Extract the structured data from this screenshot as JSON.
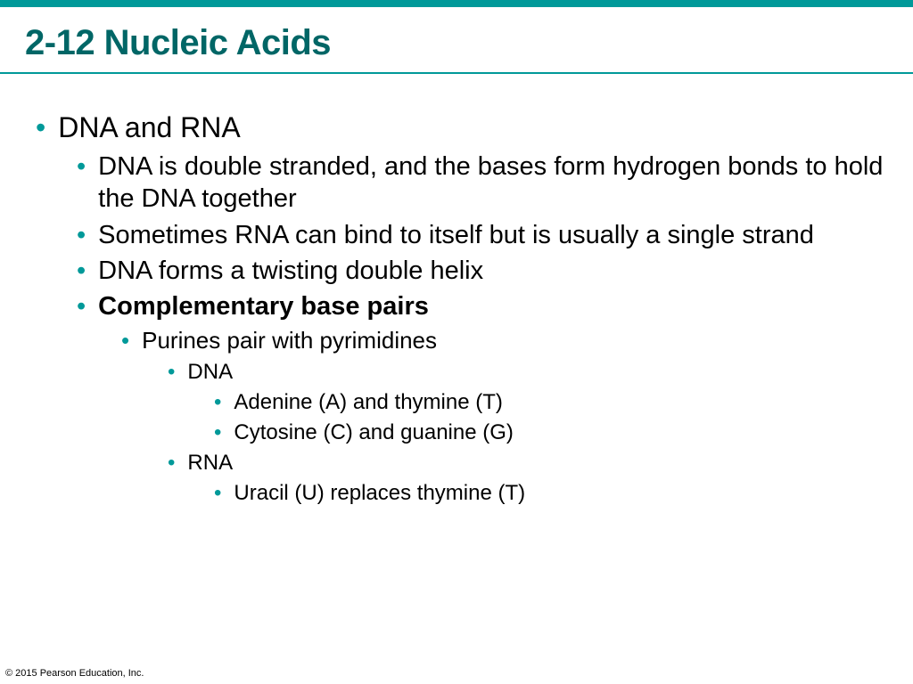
{
  "colors": {
    "accent": "#009999",
    "title": "#006666",
    "text": "#000000",
    "background": "#ffffff"
  },
  "typography": {
    "title_fontsize": 40,
    "l1_fontsize": 32,
    "l2_fontsize": 29,
    "l3_fontsize": 26,
    "l4_fontsize": 24,
    "l5_fontsize": 24,
    "copyright_fontsize": 11,
    "font_family": "Arial"
  },
  "title": "2-12 Nucleic Acids",
  "b1": "DNA and RNA",
  "b2a": "DNA is double stranded, and the bases form hydrogen bonds to hold the DNA together",
  "b2b": "Sometimes RNA can bind to itself but is usually a single strand",
  "b2c": "DNA forms a twisting double helix",
  "b2d": "Complementary base pairs",
  "b3a": "Purines pair with pyrimidines",
  "b4a": "DNA",
  "b5a": "Adenine (A) and thymine (T)",
  "b5b": "Cytosine (C) and guanine (G)",
  "b4b": "RNA",
  "b5c": "Uracil (U) replaces thymine (T)",
  "copyright": "© 2015 Pearson Education, Inc."
}
